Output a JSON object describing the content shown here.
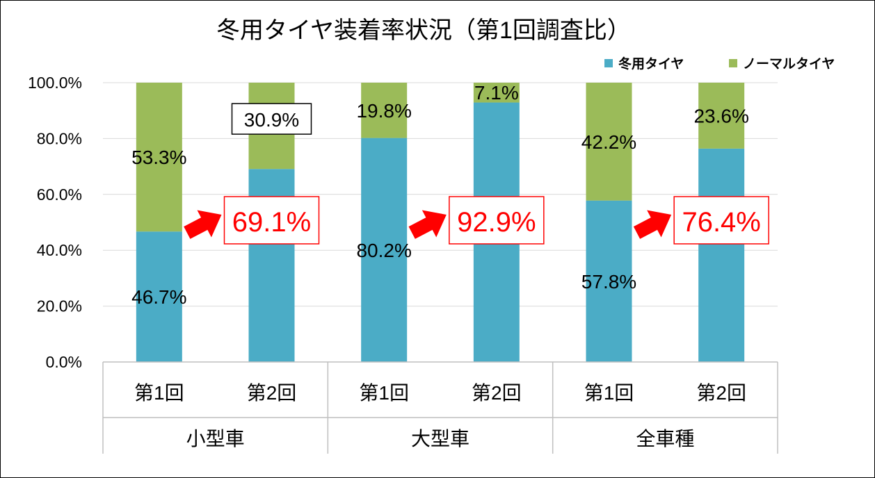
{
  "chart_data": {
    "type": "bar",
    "stacked": true,
    "title": "冬用タイヤ装着率状況（第1回調査比）",
    "legend_position": "top-right",
    "ylim": [
      0,
      100
    ],
    "yticks": [
      "0.0%",
      "20.0%",
      "40.0%",
      "60.0%",
      "80.0%",
      "100.0%"
    ],
    "grid": true,
    "groups": [
      "小型車",
      "大型車",
      "全車種"
    ],
    "categories": [
      "第1回",
      "第2回",
      "第1回",
      "第2回",
      "第1回",
      "第2回"
    ],
    "series": [
      {
        "name": "冬用タイヤ",
        "color": "#4bacc6",
        "values": [
          46.7,
          69.1,
          80.2,
          92.9,
          57.8,
          76.4
        ],
        "labels": [
          "46.7%",
          "69.1%",
          "80.2%",
          "92.9%",
          "57.8%",
          "76.4%"
        ]
      },
      {
        "name": "ノーマルタイヤ",
        "color": "#9bbb59",
        "values": [
          53.3,
          30.9,
          19.8,
          7.1,
          42.2,
          23.6
        ],
        "labels": [
          "53.3%",
          "30.9%",
          "19.8%",
          "7.1%",
          "42.2%",
          "23.6%"
        ]
      }
    ],
    "highlight_color": "#ff0000"
  }
}
